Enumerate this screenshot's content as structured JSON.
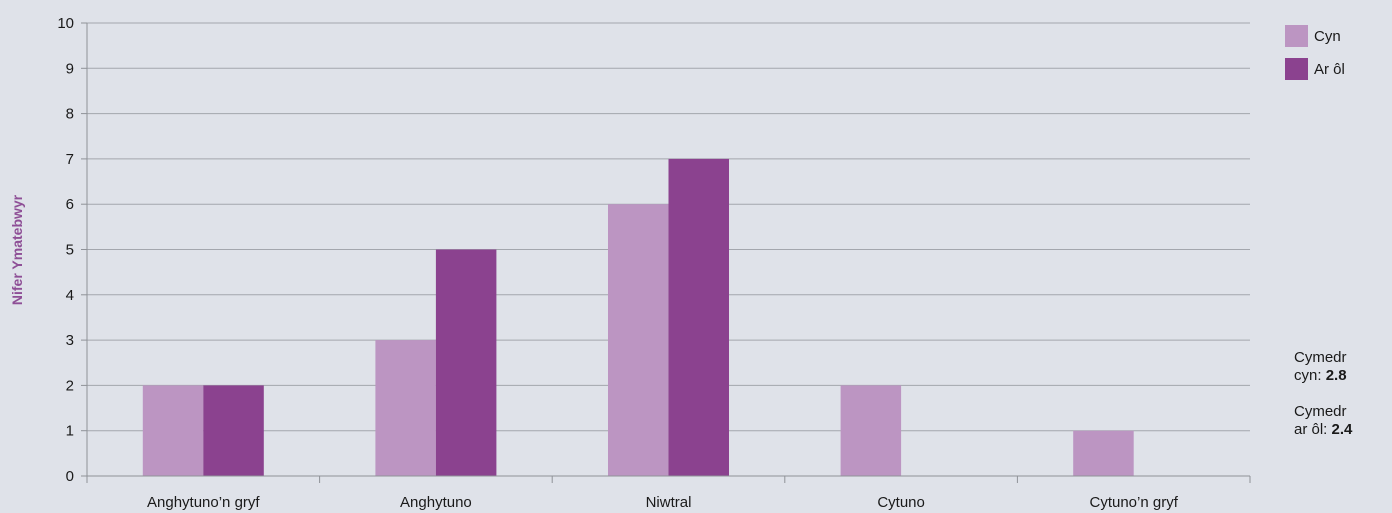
{
  "chart_data": {
    "type": "bar",
    "categories": [
      "Anghytuno’n gryf",
      "Anghytuno",
      "Niwtral",
      "Cytuno",
      "Cytuno’n gryf"
    ],
    "series": [
      {
        "name": "Cyn",
        "values": [
          2,
          3,
          6,
          2,
          1
        ],
        "color": "#bc95c2"
      },
      {
        "name": "Ar ôl",
        "values": [
          2,
          5,
          7,
          0,
          0
        ],
        "color": "#8b428f"
      }
    ],
    "ylabel": "Nifer Ymatebwyr",
    "ylim": [
      0,
      10
    ],
    "yticks": [
      "0",
      "1",
      "2",
      "3",
      "4",
      "5",
      "6",
      "7",
      "8",
      "9",
      "10"
    ],
    "grid": true,
    "legend_position": "top-right"
  },
  "annotations": {
    "mean_before_label_1": "Cymedr",
    "mean_before_label_2": "cyn:",
    "mean_before_value": "2.8",
    "mean_after_label_1": "Cymedr",
    "mean_after_label_2": "ar ôl:",
    "mean_after_value": "2.4"
  },
  "colors": {
    "background": "#dfe2e9",
    "grid": "#a3a6ad",
    "axis": "#8f9298"
  }
}
